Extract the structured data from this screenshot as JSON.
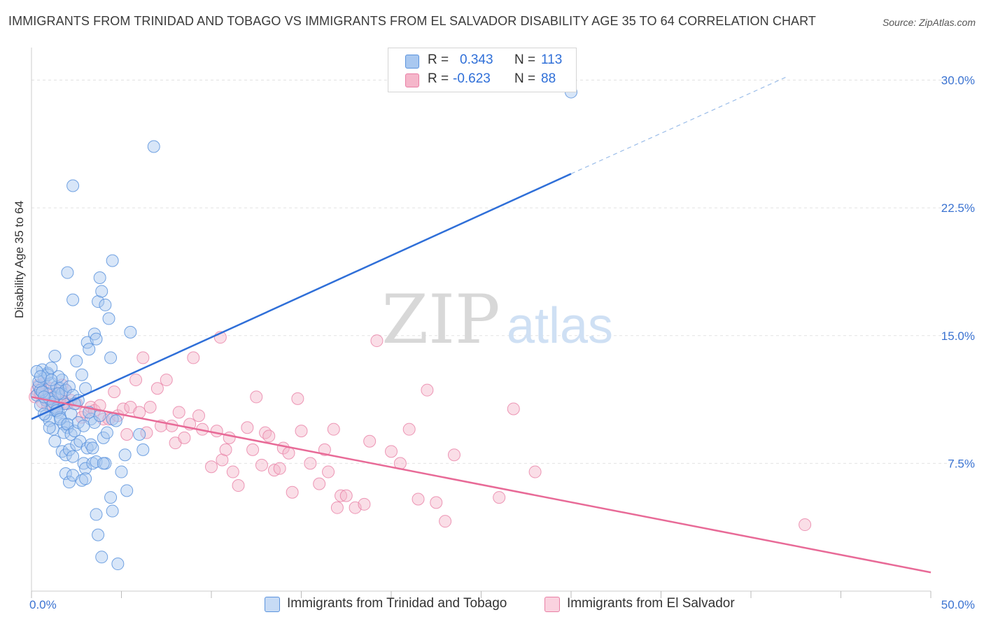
{
  "title": "IMMIGRANTS FROM TRINIDAD AND TOBAGO VS IMMIGRANTS FROM EL SALVADOR DISABILITY AGE 35 TO 64 CORRELATION CHART",
  "source": "Source: ZipAtlas.com",
  "watermark": {
    "zip": "ZIP",
    "atlas": "atlas"
  },
  "legend_top": {
    "rows": [
      {
        "r_label": "R =",
        "r_value": "0.343",
        "n_label": "N =",
        "n_value": "113",
        "color": "#a9c8f0"
      },
      {
        "r_label": "R =",
        "r_value": "-0.623",
        "n_label": "N =",
        "n_value": "88",
        "color": "#f5b6ca"
      }
    ]
  },
  "colors": {
    "blue_fill": "#a9c8f0",
    "blue_stroke": "#5b93dd",
    "blue_line": "#2f6fd8",
    "pink_fill": "#f5b6ca",
    "pink_stroke": "#e97fa5",
    "pink_line": "#e86a97",
    "axis_text": "#3b73d1",
    "grid": "#e2e2e2"
  },
  "chart_data": {
    "type": "scatter",
    "title": "IMMIGRANTS FROM TRINIDAD AND TOBAGO VS IMMIGRANTS FROM EL SALVADOR DISABILITY AGE 35 TO 64 CORRELATION CHART",
    "xlabel": "",
    "ylabel": "Disability Age 35 to 64",
    "xlim": [
      0,
      50
    ],
    "ylim": [
      0,
      31.5
    ],
    "x_tick_labels": [
      "0.0%",
      "50.0%"
    ],
    "y_ticks": [
      7.5,
      15.0,
      22.5,
      30.0
    ],
    "y_tick_labels": [
      "7.5%",
      "15.0%",
      "22.5%",
      "30.0%"
    ],
    "grid": true,
    "legend_placement": "top-center",
    "series": [
      {
        "name": "Immigrants from Trinidad and Tobago",
        "R": 0.343,
        "N": 113,
        "trend": {
          "x0": 0,
          "y0": 10.1,
          "x1": 30,
          "y1": 24.5,
          "dashed_to": {
            "x": 42,
            "y": 30.2
          }
        },
        "points": [
          [
            0.3,
            11.5
          ],
          [
            0.4,
            12.0
          ],
          [
            0.5,
            11.8
          ],
          [
            0.6,
            13.0
          ],
          [
            0.7,
            12.5
          ],
          [
            0.8,
            11.2
          ],
          [
            0.9,
            12.8
          ],
          [
            1.0,
            11.6
          ],
          [
            1.1,
            12.2
          ],
          [
            1.2,
            10.8
          ],
          [
            1.3,
            11.4
          ],
          [
            1.4,
            12.0
          ],
          [
            1.5,
            10.5
          ],
          [
            1.6,
            11.9
          ],
          [
            1.7,
            12.4
          ],
          [
            1.8,
            11.0
          ],
          [
            0.5,
            10.9
          ],
          [
            0.8,
            10.3
          ],
          [
            1.0,
            10.0
          ],
          [
            1.2,
            9.5
          ],
          [
            1.4,
            10.7
          ],
          [
            1.6,
            10.2
          ],
          [
            1.8,
            9.8
          ],
          [
            2.0,
            9.6
          ],
          [
            2.2,
            10.4
          ],
          [
            0.9,
            12.7
          ],
          [
            1.1,
            13.1
          ],
          [
            1.3,
            13.8
          ],
          [
            1.5,
            12.6
          ],
          [
            1.7,
            11.6
          ],
          [
            1.9,
            11.8
          ],
          [
            2.1,
            12.0
          ],
          [
            2.3,
            11.5
          ],
          [
            1.0,
            11.3
          ],
          [
            1.2,
            11.1
          ],
          [
            1.4,
            10.6
          ],
          [
            1.6,
            10.1
          ],
          [
            1.8,
            9.3
          ],
          [
            2.0,
            9.8
          ],
          [
            2.2,
            9.2
          ],
          [
            2.4,
            9.4
          ],
          [
            2.6,
            9.9
          ],
          [
            1.7,
            8.2
          ],
          [
            1.9,
            8.0
          ],
          [
            2.1,
            8.3
          ],
          [
            2.3,
            7.9
          ],
          [
            2.5,
            8.6
          ],
          [
            2.7,
            8.8
          ],
          [
            2.9,
            7.5
          ],
          [
            3.1,
            8.4
          ],
          [
            3.3,
            8.6
          ],
          [
            1.9,
            6.9
          ],
          [
            2.1,
            6.4
          ],
          [
            2.3,
            6.8
          ],
          [
            2.8,
            6.5
          ],
          [
            3.0,
            7.2
          ],
          [
            3.4,
            7.5
          ],
          [
            3.6,
            7.6
          ],
          [
            2.5,
            13.5
          ],
          [
            2.8,
            12.7
          ],
          [
            3.0,
            11.9
          ],
          [
            2.6,
            11.2
          ],
          [
            3.3,
            10.1
          ],
          [
            3.5,
            9.9
          ],
          [
            3.8,
            10.3
          ],
          [
            4.0,
            9.0
          ],
          [
            4.2,
            9.3
          ],
          [
            4.5,
            10.1
          ],
          [
            4.7,
            10.0
          ],
          [
            5.0,
            7.0
          ],
          [
            5.3,
            5.9
          ],
          [
            5.2,
            8.0
          ],
          [
            5.5,
            15.2
          ],
          [
            6.0,
            9.2
          ],
          [
            6.2,
            8.3
          ],
          [
            2.0,
            18.7
          ],
          [
            2.3,
            17.1
          ],
          [
            3.1,
            14.6
          ],
          [
            3.5,
            15.1
          ],
          [
            3.7,
            17.0
          ],
          [
            3.8,
            18.4
          ],
          [
            3.6,
            14.8
          ],
          [
            3.9,
            17.6
          ],
          [
            4.1,
            16.8
          ],
          [
            4.3,
            16.0
          ],
          [
            4.4,
            13.7
          ],
          [
            4.5,
            19.4
          ],
          [
            3.2,
            14.2
          ],
          [
            6.8,
            26.1
          ],
          [
            2.3,
            23.8
          ],
          [
            3.6,
            4.5
          ],
          [
            4.1,
            7.5
          ],
          [
            4.4,
            5.5
          ],
          [
            4.5,
            4.7
          ],
          [
            3.7,
            3.3
          ],
          [
            3.9,
            2.0
          ],
          [
            4.8,
            1.6
          ],
          [
            0.4,
            12.3
          ],
          [
            0.6,
            11.7
          ],
          [
            0.7,
            11.4
          ],
          [
            1.1,
            12.4
          ],
          [
            1.5,
            11.6
          ],
          [
            2.4,
            11.0
          ],
          [
            3.2,
            10.5
          ],
          [
            4.0,
            7.5
          ],
          [
            0.3,
            12.9
          ],
          [
            0.5,
            12.6
          ],
          [
            0.7,
            10.4
          ],
          [
            1.0,
            9.6
          ],
          [
            1.3,
            8.8
          ],
          [
            2.9,
            9.7
          ],
          [
            3.4,
            8.4
          ],
          [
            3.0,
            6.6
          ],
          [
            30.0,
            29.3
          ]
        ]
      },
      {
        "name": "Immigrants from El Salvador",
        "R": -0.623,
        "N": 88,
        "trend": {
          "x0": 0,
          "y0": 11.4,
          "x1": 50,
          "y1": 1.1
        },
        "points": [
          [
            0.2,
            11.4
          ],
          [
            0.3,
            11.8
          ],
          [
            0.4,
            12.1
          ],
          [
            0.5,
            11.6
          ],
          [
            0.6,
            11.1
          ],
          [
            0.7,
            12.2
          ],
          [
            0.8,
            11.3
          ],
          [
            0.9,
            10.9
          ],
          [
            1.0,
            11.5
          ],
          [
            1.1,
            11.9
          ],
          [
            1.2,
            11.2
          ],
          [
            1.3,
            10.8
          ],
          [
            1.4,
            11.6
          ],
          [
            1.5,
            11.0
          ],
          [
            1.6,
            11.4
          ],
          [
            1.7,
            12.1
          ],
          [
            1.8,
            11.1
          ],
          [
            1.9,
            11.8
          ],
          [
            2.0,
            11.0
          ],
          [
            2.2,
            11.2
          ],
          [
            2.5,
            11.0
          ],
          [
            2.8,
            10.2
          ],
          [
            3.0,
            10.5
          ],
          [
            3.3,
            10.8
          ],
          [
            3.5,
            10.6
          ],
          [
            3.8,
            10.9
          ],
          [
            4.0,
            10.1
          ],
          [
            4.3,
            10.1
          ],
          [
            4.6,
            11.7
          ],
          [
            4.8,
            10.3
          ],
          [
            5.1,
            10.7
          ],
          [
            5.3,
            9.2
          ],
          [
            5.5,
            10.8
          ],
          [
            5.8,
            12.4
          ],
          [
            6.0,
            10.5
          ],
          [
            6.2,
            13.7
          ],
          [
            6.4,
            9.3
          ],
          [
            6.6,
            10.8
          ],
          [
            7.0,
            11.9
          ],
          [
            7.2,
            9.7
          ],
          [
            7.5,
            12.4
          ],
          [
            7.8,
            9.7
          ],
          [
            8.0,
            8.7
          ],
          [
            8.2,
            10.5
          ],
          [
            8.5,
            9.0
          ],
          [
            8.8,
            9.8
          ],
          [
            9.0,
            13.7
          ],
          [
            9.3,
            10.3
          ],
          [
            9.5,
            9.5
          ],
          [
            10.0,
            7.3
          ],
          [
            10.3,
            9.4
          ],
          [
            10.6,
            7.7
          ],
          [
            10.8,
            8.3
          ],
          [
            10.5,
            14.9
          ],
          [
            11.0,
            9.0
          ],
          [
            11.2,
            7.0
          ],
          [
            11.5,
            6.2
          ],
          [
            12.0,
            9.6
          ],
          [
            12.3,
            8.3
          ],
          [
            12.5,
            11.4
          ],
          [
            12.8,
            7.4
          ],
          [
            13.0,
            9.3
          ],
          [
            13.2,
            9.1
          ],
          [
            13.5,
            7.1
          ],
          [
            13.8,
            7.2
          ],
          [
            14.0,
            8.4
          ],
          [
            14.3,
            8.1
          ],
          [
            14.5,
            5.8
          ],
          [
            14.8,
            11.3
          ],
          [
            15.0,
            9.4
          ],
          [
            15.5,
            7.5
          ],
          [
            16.0,
            6.3
          ],
          [
            16.3,
            8.3
          ],
          [
            16.5,
            7.0
          ],
          [
            16.8,
            9.5
          ],
          [
            17.0,
            4.9
          ],
          [
            17.2,
            5.6
          ],
          [
            17.5,
            5.6
          ],
          [
            18.0,
            4.9
          ],
          [
            18.5,
            5.1
          ],
          [
            18.8,
            8.8
          ],
          [
            19.2,
            14.7
          ],
          [
            20.0,
            8.2
          ],
          [
            20.5,
            7.5
          ],
          [
            21.0,
            9.5
          ],
          [
            21.5,
            5.4
          ],
          [
            22.0,
            11.8
          ],
          [
            22.5,
            5.2
          ],
          [
            23.0,
            4.1
          ],
          [
            23.5,
            8.0
          ],
          [
            26.0,
            5.5
          ],
          [
            26.8,
            10.7
          ],
          [
            28.0,
            7.0
          ],
          [
            43.0,
            3.9
          ]
        ]
      }
    ]
  },
  "bottom_legend": [
    {
      "label": "Immigrants from Trinidad and Tobago"
    },
    {
      "label": "Immigrants from El Salvador"
    }
  ]
}
